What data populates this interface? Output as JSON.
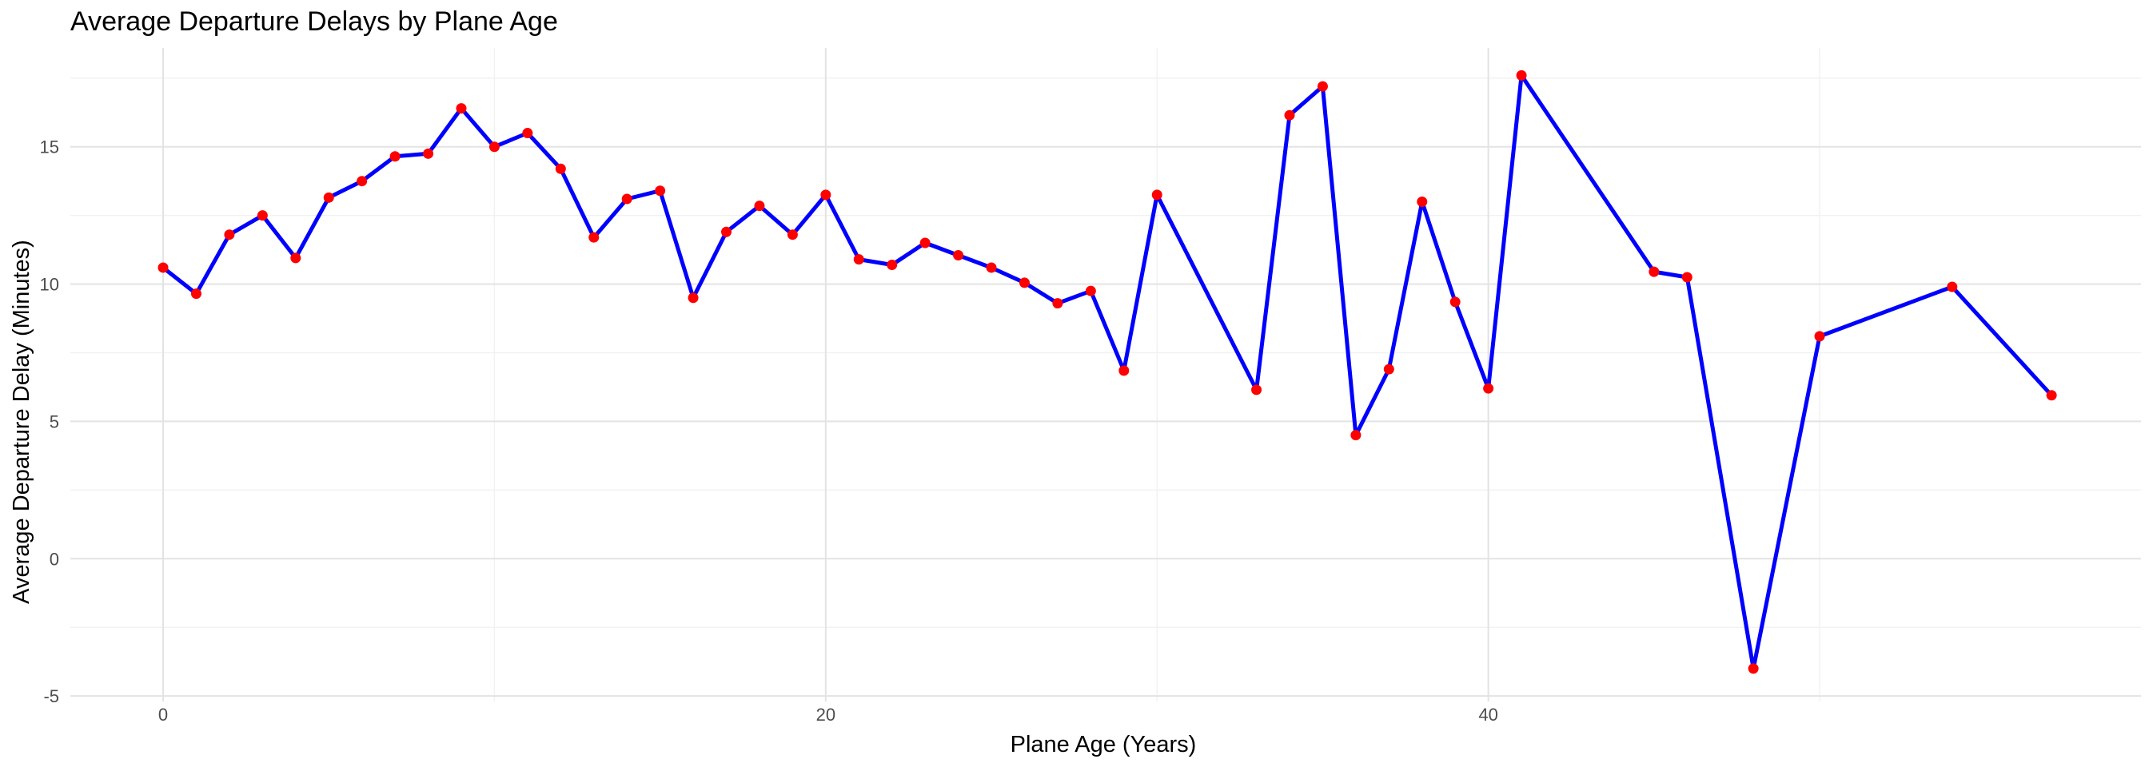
{
  "chart_data": {
    "type": "line",
    "title": "Average Departure Delays by Plane Age",
    "xlabel": "Plane Age (Years)",
    "ylabel": "Average Departure Delay (Minutes)",
    "xlim": [
      -2.8,
      59.7
    ],
    "ylim": [
      -5.2,
      18.6
    ],
    "xticks": [
      0,
      20,
      40
    ],
    "yticks": [
      -5,
      0,
      5,
      10,
      15
    ],
    "grid": true,
    "legend": "none",
    "colors": {
      "line": "#0000ff",
      "points": "#ff0000",
      "grid": "#e3e3e3"
    },
    "x": [
      0,
      1,
      2,
      3,
      4,
      5,
      6,
      7,
      8,
      9,
      10,
      11,
      12,
      13,
      14,
      15,
      16,
      17,
      18,
      19,
      20,
      21,
      22,
      23,
      24,
      25,
      26,
      27,
      28,
      29,
      30,
      33,
      34,
      35,
      36,
      37,
      38,
      39,
      40,
      41,
      45,
      46,
      48,
      50,
      54,
      57
    ],
    "y": [
      10.6,
      9.65,
      11.8,
      12.5,
      10.95,
      13.15,
      13.75,
      14.65,
      14.75,
      16.4,
      15.0,
      15.5,
      14.2,
      11.7,
      13.1,
      13.4,
      9.5,
      11.9,
      12.85,
      11.8,
      13.25,
      10.9,
      10.7,
      11.5,
      11.05,
      10.6,
      10.05,
      9.3,
      9.75,
      6.85,
      13.25,
      6.15,
      16.15,
      17.2,
      4.5,
      6.9,
      13.0,
      9.35,
      6.2,
      17.6,
      10.45,
      10.25,
      -4.0,
      8.1,
      9.9,
      5.95
    ]
  }
}
